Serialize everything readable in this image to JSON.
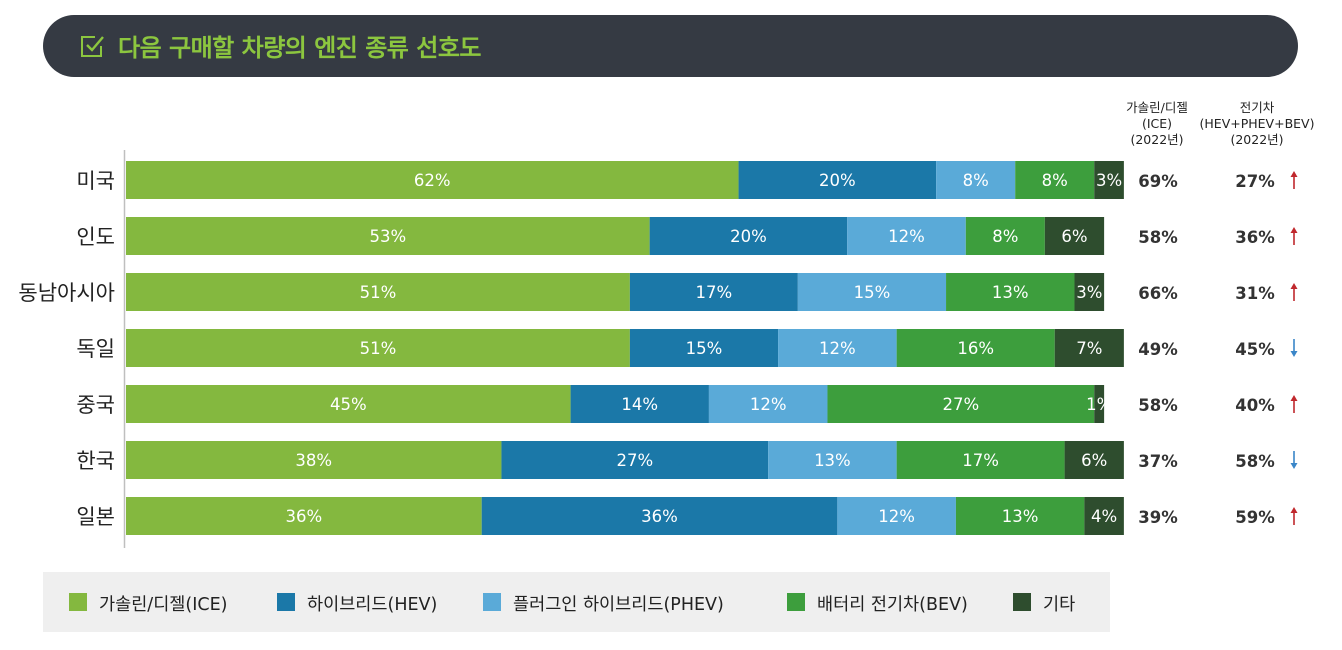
{
  "header": {
    "title": "다음 구매할 차량의 엔진 종류 선호도",
    "icon": "checkbox-icon"
  },
  "columns": {
    "ice_header": "가솔린/디젤\n(ICE)\n(2022년)",
    "ev_header": "전기차\n(HEV+PHEV+BEV)\n(2022년)"
  },
  "colors": {
    "ice": "#84b83f",
    "hev": "#1b78a8",
    "phev": "#5aaad8",
    "bev": "#3d9e3d",
    "other": "#2e4d2e",
    "up": "#c0282d",
    "down": "#3a86c8",
    "header_bg": "#353a43",
    "title": "#8cc63f"
  },
  "chart_data": {
    "type": "bar",
    "orientation": "horizontal-stacked",
    "title": "다음 구매할 차량의 엔진 종류 선호도",
    "categories": [
      "미국",
      "인도",
      "동남아시아",
      "독일",
      "중국",
      "한국",
      "일본"
    ],
    "series": [
      {
        "name": "가솔린/디젤(ICE)",
        "key": "ice",
        "values": [
          62,
          53,
          51,
          51,
          45,
          38,
          36
        ]
      },
      {
        "name": "하이브리드(HEV)",
        "key": "hev",
        "values": [
          20,
          20,
          17,
          15,
          14,
          27,
          36
        ]
      },
      {
        "name": "플러그인 하이브리드(PHEV)",
        "key": "phev",
        "values": [
          8,
          12,
          15,
          12,
          12,
          13,
          12
        ]
      },
      {
        "name": "배터리 전기차(BEV)",
        "key": "bev",
        "values": [
          8,
          8,
          13,
          16,
          27,
          17,
          13
        ]
      },
      {
        "name": "기타",
        "key": "other",
        "values": [
          3,
          6,
          3,
          7,
          1,
          6,
          4
        ]
      }
    ],
    "ice_2022": [
      "69%",
      "58%",
      "66%",
      "49%",
      "58%",
      "37%",
      "39%"
    ],
    "ev_2022": [
      "27%",
      "36%",
      "31%",
      "45%",
      "40%",
      "58%",
      "59%"
    ],
    "trend": [
      "up",
      "up",
      "up",
      "down",
      "up",
      "down",
      "up"
    ],
    "xlim": [
      0,
      100
    ],
    "value_suffix": "%"
  },
  "legend": [
    {
      "label": "가솔린/디젤(ICE)",
      "key": "ice"
    },
    {
      "label": "하이브리드(HEV)",
      "key": "hev"
    },
    {
      "label": "플러그인 하이브리드(PHEV)",
      "key": "phev"
    },
    {
      "label": "배터리 전기차(BEV)",
      "key": "bev"
    },
    {
      "label": "기타",
      "key": "other"
    }
  ]
}
